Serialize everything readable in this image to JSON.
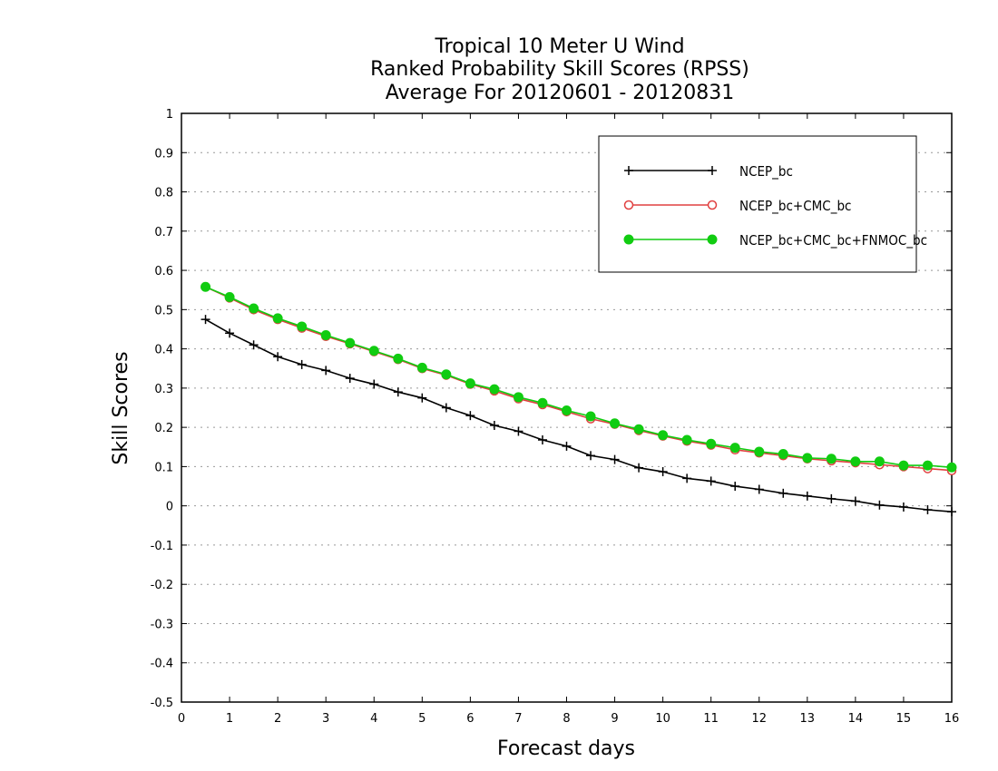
{
  "chart_data": {
    "type": "line",
    "title_lines": [
      "Tropical 10 Meter U Wind",
      "Ranked Probability Skill Scores (RPSS)",
      "Average For 20120601 - 20120831"
    ],
    "xlabel": "Forecast days",
    "ylabel": "Skill Scores",
    "xlim": [
      0,
      16
    ],
    "ylim": [
      -0.5,
      1
    ],
    "x_ticks": [
      "0",
      "1",
      "2",
      "3",
      "4",
      "5",
      "6",
      "7",
      "8",
      "9",
      "10",
      "11",
      "12",
      "13",
      "14",
      "15",
      "16"
    ],
    "y_ticks": [
      "-0.5",
      "-0.4",
      "-0.3",
      "-0.2",
      "-0.1",
      "0",
      "0.1",
      "0.2",
      "0.3",
      "0.4",
      "0.5",
      "0.6",
      "0.7",
      "0.8",
      "0.9",
      "1"
    ],
    "grid": "horizontal dotted",
    "legend_position": "top-right",
    "x": [
      0.5,
      1,
      1.5,
      2,
      2.5,
      3,
      3.5,
      4,
      4.5,
      5,
      5.5,
      6,
      6.5,
      7,
      7.5,
      8,
      8.5,
      9,
      9.5,
      10,
      10.5,
      11,
      11.5,
      12,
      12.5,
      13,
      13.5,
      14,
      14.5,
      15,
      15.5,
      16
    ],
    "series": [
      {
        "name": "NCEP_bc",
        "color": "#000000",
        "marker": "plus",
        "values": [
          0.475,
          0.44,
          0.41,
          0.38,
          0.36,
          0.345,
          0.325,
          0.31,
          0.29,
          0.275,
          0.25,
          0.23,
          0.205,
          0.19,
          0.168,
          0.152,
          0.128,
          0.118,
          0.097,
          0.087,
          0.07,
          0.063,
          0.05,
          0.042,
          0.032,
          0.025,
          0.018,
          0.012,
          0.002,
          -0.003,
          -0.01,
          -0.015
        ]
      },
      {
        "name": "NCEP_bc+CMC_bc",
        "color": "#e04040",
        "marker": "open-circle",
        "values": [
          0.558,
          0.53,
          0.5,
          0.475,
          0.453,
          0.432,
          0.413,
          0.393,
          0.373,
          0.35,
          0.333,
          0.31,
          0.293,
          0.273,
          0.258,
          0.24,
          0.222,
          0.208,
          0.192,
          0.178,
          0.165,
          0.155,
          0.143,
          0.135,
          0.128,
          0.12,
          0.115,
          0.11,
          0.105,
          0.1,
          0.095,
          0.09
        ]
      },
      {
        "name": "NCEP_bc+CMC_bc+FNMOC_bc",
        "color": "#11cc11",
        "marker": "filled-circle",
        "values": [
          0.558,
          0.532,
          0.503,
          0.478,
          0.457,
          0.435,
          0.415,
          0.395,
          0.375,
          0.352,
          0.335,
          0.312,
          0.297,
          0.277,
          0.262,
          0.243,
          0.228,
          0.21,
          0.195,
          0.18,
          0.168,
          0.158,
          0.148,
          0.138,
          0.132,
          0.122,
          0.12,
          0.113,
          0.113,
          0.103,
          0.103,
          0.098
        ]
      }
    ]
  }
}
